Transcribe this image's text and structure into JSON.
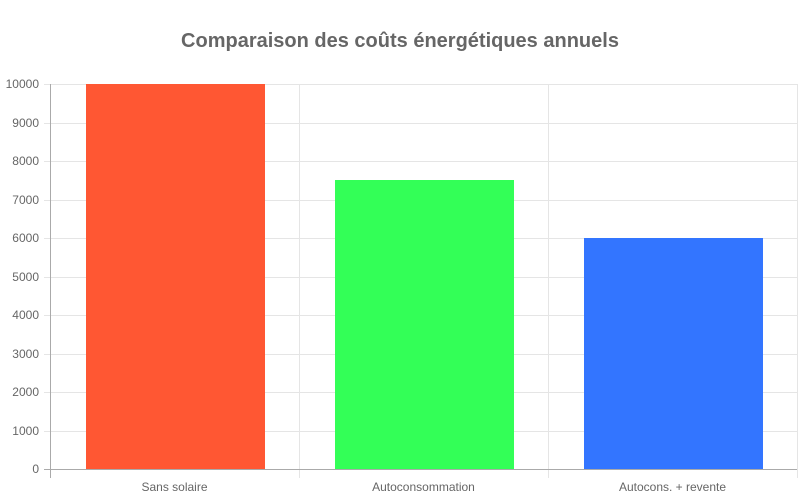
{
  "chart_data": {
    "type": "bar",
    "title": "Comparaison des coûts énergétiques annuels",
    "categories": [
      "Sans solaire",
      "Autoconsommation",
      "Autocons. + revente"
    ],
    "values": [
      10000,
      7500,
      6000
    ],
    "colors": [
      "#ff5733",
      "#33ff57",
      "#3375ff"
    ],
    "xlabel": "",
    "ylabel": "",
    "ylim": [
      0,
      10000
    ],
    "yticks": [
      0,
      1000,
      2000,
      3000,
      4000,
      5000,
      6000,
      7000,
      8000,
      9000,
      10000
    ],
    "grid": true,
    "legend": false
  }
}
